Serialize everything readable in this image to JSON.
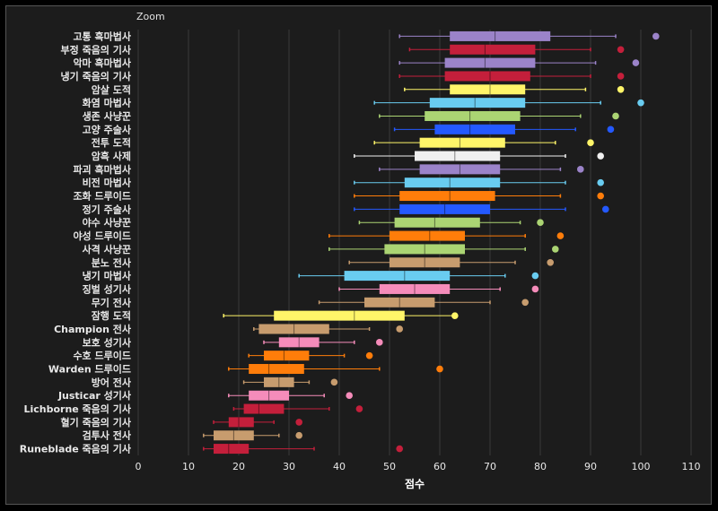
{
  "zoom_label": "Zoom",
  "chart_data": {
    "type": "boxplot",
    "xlabel": "점수",
    "xlim": [
      0,
      110
    ],
    "xticks": [
      0,
      10,
      20,
      30,
      40,
      50,
      60,
      70,
      80,
      90,
      100,
      110
    ],
    "grid": "vertical",
    "rows": [
      {
        "name": "고통 흑마법사",
        "color": "#9b83c9",
        "whisker_low": 52,
        "q1": 62,
        "median": 71,
        "q3": 82,
        "whisker_high": 95,
        "outlier": 103
      },
      {
        "name": "부정 죽음의 기사",
        "color": "#c41f3b",
        "whisker_low": 54,
        "q1": 62,
        "median": 69,
        "q3": 79,
        "whisker_high": 90,
        "outlier": 96
      },
      {
        "name": "악마 흑마법사",
        "color": "#9b83c9",
        "whisker_low": 52,
        "q1": 61,
        "median": 69,
        "q3": 79,
        "whisker_high": 91,
        "outlier": 99
      },
      {
        "name": "냉기 죽음의 기사",
        "color": "#c41f3b",
        "whisker_low": 52,
        "q1": 61,
        "median": 70,
        "q3": 78,
        "whisker_high": 90,
        "outlier": 96
      },
      {
        "name": "암살 도적",
        "color": "#fff569",
        "whisker_low": 53,
        "q1": 62,
        "median": 70,
        "q3": 77,
        "whisker_high": 89,
        "outlier": 96
      },
      {
        "name": "화염 마법사",
        "color": "#69ccf0",
        "whisker_low": 47,
        "q1": 58,
        "median": 67,
        "q3": 77,
        "whisker_high": 92,
        "outlier": 100
      },
      {
        "name": "생존 사냥꾼",
        "color": "#abd473",
        "whisker_low": 48,
        "q1": 57,
        "median": 66,
        "q3": 76,
        "whisker_high": 88,
        "outlier": 95
      },
      {
        "name": "고양 주술사",
        "color": "#2459ff",
        "whisker_low": 51,
        "q1": 59,
        "median": 66,
        "q3": 75,
        "whisker_high": 87,
        "outlier": 94
      },
      {
        "name": "전투 도적",
        "color": "#fff569",
        "whisker_low": 47,
        "q1": 56,
        "median": 64,
        "q3": 73,
        "whisker_high": 83,
        "outlier": 90
      },
      {
        "name": "암흑 사제",
        "color": "#f0f0f0",
        "whisker_low": 43,
        "q1": 55,
        "median": 63,
        "q3": 72,
        "whisker_high": 85,
        "outlier": 92
      },
      {
        "name": "파괴 흑마법사",
        "color": "#9b83c9",
        "whisker_low": 48,
        "q1": 56,
        "median": 64,
        "q3": 72,
        "whisker_high": 84,
        "outlier": 88
      },
      {
        "name": "비전 마법사",
        "color": "#69ccf0",
        "whisker_low": 43,
        "q1": 53,
        "median": 62,
        "q3": 72,
        "whisker_high": 85,
        "outlier": 92
      },
      {
        "name": "조화 드루이드",
        "color": "#ff7d0a",
        "whisker_low": 43,
        "q1": 52,
        "median": 62,
        "q3": 71,
        "whisker_high": 84,
        "outlier": 92
      },
      {
        "name": "정기 주술사",
        "color": "#2459ff",
        "whisker_low": 43,
        "q1": 52,
        "median": 61,
        "q3": 70,
        "whisker_high": 85,
        "outlier": 93
      },
      {
        "name": "야수 사냥꾼",
        "color": "#abd473",
        "whisker_low": 44,
        "q1": 51,
        "median": 59,
        "q3": 68,
        "whisker_high": 76,
        "outlier": 80
      },
      {
        "name": "야성 드루이드",
        "color": "#ff7d0a",
        "whisker_low": 38,
        "q1": 50,
        "median": 58,
        "q3": 65,
        "whisker_high": 77,
        "outlier": 84
      },
      {
        "name": "사격 사냥꾼",
        "color": "#abd473",
        "whisker_low": 38,
        "q1": 49,
        "median": 57,
        "q3": 65,
        "whisker_high": 77,
        "outlier": 83
      },
      {
        "name": "분노 전사",
        "color": "#c79c6e",
        "whisker_low": 42,
        "q1": 50,
        "median": 57,
        "q3": 64,
        "whisker_high": 75,
        "outlier": 82
      },
      {
        "name": "냉기 마법사",
        "color": "#69ccf0",
        "whisker_low": 32,
        "q1": 41,
        "median": 53,
        "q3": 62,
        "whisker_high": 73,
        "outlier": 79
      },
      {
        "name": "징벌 성기사",
        "color": "#f58cba",
        "whisker_low": 40,
        "q1": 48,
        "median": 55,
        "q3": 62,
        "whisker_high": 72,
        "outlier": 79
      },
      {
        "name": "무기 전사",
        "color": "#c79c6e",
        "whisker_low": 36,
        "q1": 45,
        "median": 52,
        "q3": 59,
        "whisker_high": 70,
        "outlier": 77
      },
      {
        "name": "잠행 도적",
        "color": "#fff569",
        "whisker_low": 17,
        "q1": 27,
        "median": 43,
        "q3": 53,
        "whisker_high": 63,
        "outlier": 63
      },
      {
        "name": "Champion 전사",
        "color": "#c79c6e",
        "whisker_low": 23,
        "q1": 24,
        "median": 31,
        "q3": 38,
        "whisker_high": 46,
        "outlier": 52
      },
      {
        "name": "보호 성기사",
        "color": "#f58cba",
        "whisker_low": 25,
        "q1": 28,
        "median": 32,
        "q3": 36,
        "whisker_high": 43,
        "outlier": 48
      },
      {
        "name": "수호 드루이드",
        "color": "#ff7d0a",
        "whisker_low": 22,
        "q1": 25,
        "median": 29,
        "q3": 34,
        "whisker_high": 41,
        "outlier": 46
      },
      {
        "name": "Warden 드루이드",
        "color": "#ff7d0a",
        "whisker_low": 18,
        "q1": 22,
        "median": 26,
        "q3": 33,
        "whisker_high": 48,
        "outlier": 60
      },
      {
        "name": "방어 전사",
        "color": "#c79c6e",
        "whisker_low": 21,
        "q1": 25,
        "median": 28,
        "q3": 31,
        "whisker_high": 34,
        "outlier": 39
      },
      {
        "name": "Justicar 성기사",
        "color": "#f58cba",
        "whisker_low": 18,
        "q1": 22,
        "median": 26,
        "q3": 30,
        "whisker_high": 37,
        "outlier": 42
      },
      {
        "name": "Lichborne 죽음의 기사",
        "color": "#c41f3b",
        "whisker_low": 19,
        "q1": 21,
        "median": 24,
        "q3": 29,
        "whisker_high": 38,
        "outlier": 44
      },
      {
        "name": "혈기 죽음의 기사",
        "color": "#c41f3b",
        "whisker_low": 15,
        "q1": 18,
        "median": 20,
        "q3": 23,
        "whisker_high": 27,
        "outlier": 32
      },
      {
        "name": "검투사 전사",
        "color": "#c79c6e",
        "whisker_low": 13,
        "q1": 15,
        "median": 19,
        "q3": 23,
        "whisker_high": 28,
        "outlier": 32
      },
      {
        "name": "Runeblade 죽음의 기사",
        "color": "#c41f3b",
        "whisker_low": 13,
        "q1": 15,
        "median": 18,
        "q3": 22,
        "whisker_high": 35,
        "outlier": 52
      }
    ]
  }
}
